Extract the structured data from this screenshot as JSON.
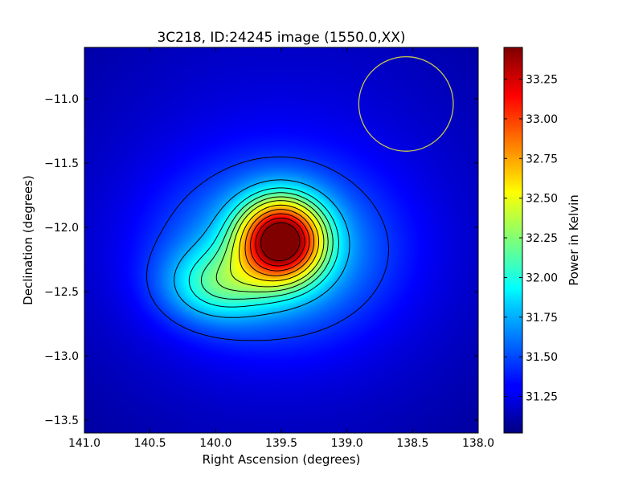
{
  "chart_data": {
    "type": "heatmap",
    "title": "3C218, ID:24245 image (1550.0,XX)",
    "xlabel": "Right Ascension (degrees)",
    "ylabel": "Declination (degrees)",
    "colorbar_label": "Power in Kelvin",
    "colormap": "jet",
    "x_axis_inverted": true,
    "xlim": [
      141.0,
      138.0
    ],
    "ylim": [
      -13.6,
      -10.6
    ],
    "x_ticks": [
      141.0,
      140.5,
      140.0,
      139.5,
      139.0,
      138.5,
      138.0
    ],
    "x_tick_labels": [
      "141.0",
      "140.5",
      "140.0",
      "139.5",
      "139.0",
      "138.5",
      "138.0"
    ],
    "y_ticks": [
      -11.0,
      -11.5,
      -12.0,
      -12.5,
      -13.0,
      -13.5
    ],
    "y_tick_labels": [
      "−11.0",
      "−11.5",
      "−12.0",
      "−12.5",
      "−13.0",
      "−13.5"
    ],
    "colorbar_range": [
      31.02,
      33.45
    ],
    "colorbar_ticks": [
      31.25,
      31.5,
      31.75,
      32.0,
      32.25,
      32.5,
      32.75,
      33.0,
      33.25
    ],
    "colorbar_tick_labels": [
      "31.25",
      "31.50",
      "31.75",
      "32.00",
      "32.25",
      "32.50",
      "32.75",
      "33.00",
      "33.25"
    ],
    "background_level": 31.35,
    "peak": {
      "ra": 139.5,
      "dec": -12.1,
      "value": 33.45
    },
    "secondary_lobe": {
      "ra": 140.0,
      "dec": -12.45,
      "value": 32.45
    },
    "beam_circle": {
      "ra": 138.55,
      "dec": -11.04,
      "radius_deg": 0.36,
      "color": "#c8c84a"
    },
    "colors": {
      "contour": "#000000",
      "background": "#ffffff"
    }
  }
}
